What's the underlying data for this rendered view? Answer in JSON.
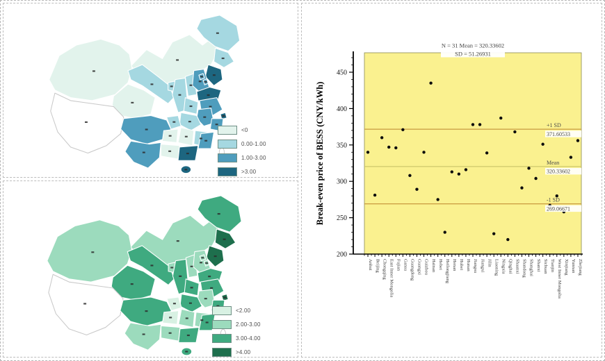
{
  "figure": {
    "bg": "#ffffff",
    "border_color": "#b5b5b5"
  },
  "maps": {
    "top": {
      "title": "china-map-blue-choropleth",
      "no_data_color": "#ffffff",
      "legend": [
        {
          "label": "<0",
          "color": "#e2f3ec"
        },
        {
          "label": "0.00-1.00",
          "color": "#a5d8e1"
        },
        {
          "label": "1.00-3.00",
          "color": "#4f9dbd"
        },
        {
          "label": ">3.00",
          "color": "#1d6680"
        }
      ],
      "regions": {
        "xinjiang": 0,
        "tibet": -1,
        "qinghai": 0,
        "gansu": 1,
        "inner-mongolia": 0,
        "heilongjiang": 1,
        "jilin": 1,
        "liaoning": 3,
        "hebei": 2,
        "beijing": 2,
        "tianjin": 2,
        "shanxi": 1,
        "shandong": 3,
        "henan": 1,
        "shaanxi": 1,
        "ningxia": 1,
        "sichuan": 2,
        "chongqing": 1,
        "hubei": 1,
        "anhui": 2,
        "jiangsu": 2,
        "shanghai": 3,
        "zhejiang": 2,
        "jiangxi": 1,
        "hunan": 0,
        "guizhou": 0,
        "yunnan": 2,
        "guangxi": 0,
        "guangdong": 3,
        "fujian": 2,
        "hainan": 3,
        "taiwan": -1
      }
    },
    "bottom": {
      "title": "china-map-green-choropleth",
      "no_data_color": "#ffffff",
      "legend": [
        {
          "label": "<2.00",
          "color": "#d8f1e3"
        },
        {
          "label": "2.00-3.00",
          "color": "#9cdbbd"
        },
        {
          "label": "3.00-4.00",
          "color": "#3faa80"
        },
        {
          "label": ">4.00",
          "color": "#1e6f4d"
        }
      ],
      "regions": {
        "xinjiang": 1,
        "tibet": -1,
        "qinghai": 2,
        "gansu": 2,
        "inner-mongolia": 1,
        "heilongjiang": 2,
        "jilin": 3,
        "liaoning": 3,
        "hebei": 1,
        "beijing": 1,
        "tianjin": 1,
        "shanxi": 1,
        "shandong": 2,
        "henan": 2,
        "shaanxi": 2,
        "ningxia": 1,
        "sichuan": 2,
        "chongqing": 0,
        "hubei": 2,
        "anhui": 1,
        "jiangsu": 2,
        "shanghai": 3,
        "zhejiang": 2,
        "jiangxi": 1,
        "hunan": 1,
        "guizhou": 0,
        "yunnan": 1,
        "guangxi": 1,
        "guangdong": 2,
        "fujian": 2,
        "hainan": 2,
        "taiwan": -1
      }
    }
  },
  "chart_data": {
    "type": "scatter",
    "title_line1": "N = 31  Mean = 320.33602",
    "title_line2": "SD = 51.26931",
    "ylabel": "Break-even price of BESS (CNY/kWh)",
    "ylim": [
      200,
      475
    ],
    "yticks": [
      200,
      250,
      300,
      350,
      400,
      450
    ],
    "grid": false,
    "legend_position": "none",
    "plot_bg": "#faf18f",
    "point_color": "#0d0d0d",
    "stats": {
      "n": 31,
      "mean": 320.33602,
      "sd": 51.26931
    },
    "lines": [
      {
        "label": "+1 SD",
        "value": 371.60533,
        "value_label": "371.60533",
        "color": "#c89a40"
      },
      {
        "label": "Mean",
        "value": 320.33602,
        "value_label": "320.33602",
        "color": "#cdc76b"
      },
      {
        "label": "-1 SD",
        "value": 269.06671,
        "value_label": "269.06671",
        "color": "#c89a40"
      }
    ],
    "categories": [
      "Anhui",
      "Beijing",
      "Chongqing",
      "East Inner Mongolia",
      "Fujian",
      "Gansu",
      "Guangdong",
      "Guangxi",
      "Guizhou",
      "Hainan",
      "Hebei",
      "Heilongjiang",
      "Henan",
      "Hubei",
      "Hunan",
      "Jiangsu",
      "Jiangxi",
      "Jilin",
      "Liaoning",
      "Ningxia",
      "Qinghai",
      "Shaanxi",
      "Shandong",
      "Shanghai",
      "Shanxi",
      "Sichuan",
      "Tianjin",
      "West Inner Mongolia",
      "Xinjiang",
      "Yunnan",
      "Zhejiang"
    ],
    "values": [
      340,
      281,
      360,
      347,
      346,
      371,
      308,
      289,
      340,
      435,
      275,
      230,
      313,
      310,
      316,
      378,
      378,
      339,
      228,
      387,
      220,
      368,
      291,
      318,
      304,
      351,
      267,
      280,
      258,
      333,
      356
    ]
  }
}
